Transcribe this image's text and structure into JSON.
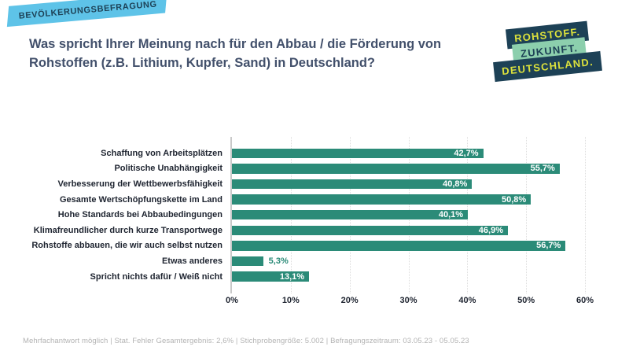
{
  "badge": {
    "label": "BEVÖLKERUNGSBEFRAGUNG",
    "bg": "#5ec3e8",
    "fg": "#1d4156"
  },
  "title": "Was spricht Ihrer Meinung nach für den Abbau / die Förderung von Rohstoffen (z.B. Lithium, Kupfer, Sand) in Deutschland?",
  "logo": {
    "lines": [
      {
        "text": "ROHSTOFF.",
        "bg": "#1d4156",
        "fg": "#dde23c"
      },
      {
        "text": "ZUKUNFT.",
        "bg": "#8ccfad",
        "fg": "#1d4156"
      },
      {
        "text": "DEUTSCHLAND.",
        "bg": "#1d4156",
        "fg": "#dde23c"
      }
    ]
  },
  "chart_data": {
    "type": "bar",
    "orientation": "horizontal",
    "categories": [
      "Schaffung von Arbeitsplätzen",
      "Politische Unabhängigkeit",
      "Verbesserung der Wettbewerbsfähigkeit",
      "Gesamte Wertschöpfungskette im Land",
      "Hohe Standards bei Abbaubedingungen",
      "Klimafreundlicher durch kurze Transportwege",
      "Rohstoffe abbauen, die wir auch selbst nutzen",
      "Etwas anderes",
      "Spricht nichts dafür / Weiß nicht"
    ],
    "values": [
      42.7,
      55.7,
      40.8,
      50.8,
      40.1,
      46.9,
      56.7,
      5.3,
      13.1
    ],
    "value_labels": [
      "42,7%",
      "55,7%",
      "40,8%",
      "50,8%",
      "40,1%",
      "46,9%",
      "56,7%",
      "5,3%",
      "13,1%"
    ],
    "x_ticks": [
      "0%",
      "10%",
      "20%",
      "30%",
      "40%",
      "50%",
      "60%"
    ],
    "tick_values": [
      0,
      10,
      20,
      30,
      40,
      50,
      60
    ],
    "xlim": [
      0,
      62
    ],
    "inside_label_min": 10,
    "bar_color": "#2b8b78",
    "grid": "vertical-dotted",
    "legend": "none",
    "title": "",
    "xlabel": "",
    "ylabel": ""
  },
  "footer": "Mehrfachantwort möglich | Stat. Fehler Gesamtergebnis: 2,6% | Stichprobengröße: 5.002 | Befragungszeitraum: 03.05.23 - 05.05.23"
}
